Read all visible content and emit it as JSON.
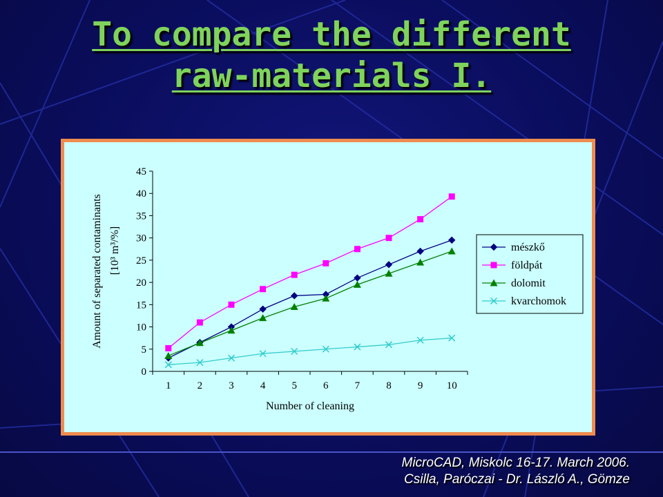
{
  "slide": {
    "title_line1": "To compare the different",
    "title_line2": "raw-materials I.",
    "footer_line1": "MicroCAD, Miskolc 16-17. March 2006.",
    "footer_line2": "Csilla, Paróczai - Dr. László A., Gömze"
  },
  "colors": {
    "background": "#0a0d5c",
    "title": "#7fd35c",
    "chart_background": "#ccffff",
    "chart_border": "#ee8c4f"
  },
  "chart_data": {
    "type": "line",
    "title": "",
    "xlabel": "Number of cleaning",
    "ylabel_line1": "Amount of separated contaminants",
    "ylabel_line2": "[10³ m³/%]",
    "categories": [
      "1",
      "2",
      "3",
      "4",
      "5",
      "6",
      "7",
      "8",
      "9",
      "10"
    ],
    "ylim": [
      0,
      45
    ],
    "yticks": [
      0,
      5,
      10,
      15,
      20,
      25,
      30,
      35,
      40,
      45
    ],
    "grid": false,
    "legend_position": "right",
    "series": [
      {
        "name": "mészkő",
        "color": "#000080",
        "marker": "diamond",
        "values": [
          3,
          6.5,
          10,
          14,
          17,
          17.3,
          21,
          24,
          27,
          29.5
        ]
      },
      {
        "name": "földpát",
        "color": "#ff00ff",
        "marker": "square",
        "values": [
          5.2,
          11,
          15,
          18.5,
          21.7,
          24.3,
          27.5,
          30,
          34.2,
          39.3
        ]
      },
      {
        "name": "dolomit",
        "color": "#008000",
        "marker": "triangle",
        "values": [
          3.5,
          6.4,
          9.2,
          12,
          14.5,
          16.4,
          19.5,
          22,
          24.5,
          27
        ]
      },
      {
        "name": "kvarchomok",
        "color": "#33cccc",
        "marker": "x",
        "values": [
          1.5,
          2,
          3,
          4,
          4.5,
          5,
          5.5,
          6,
          7,
          7.5
        ]
      }
    ]
  }
}
